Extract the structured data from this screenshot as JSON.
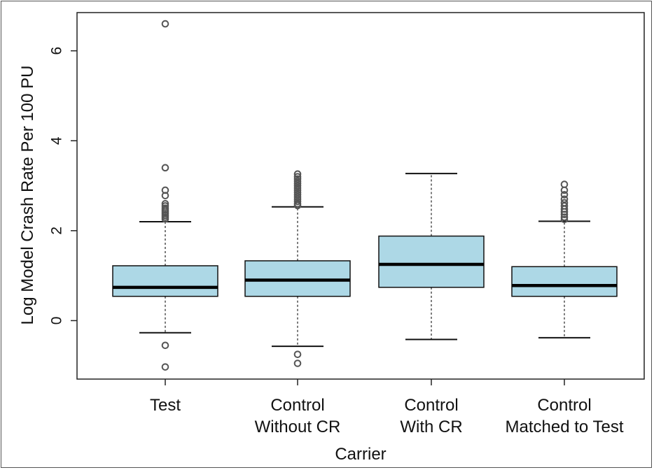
{
  "chart_data": {
    "type": "boxplot",
    "title": "",
    "xlabel": "Carrier",
    "ylabel": "Log Model Crash Rate Per 100 PU",
    "ylim": [
      -1.3,
      6.85
    ],
    "yticks": [
      0,
      2,
      4,
      6
    ],
    "grid": false,
    "legend": "none",
    "box_color": "#add8e6",
    "categories": [
      [
        "Test"
      ],
      [
        "Control",
        "Without CR"
      ],
      [
        "Control",
        "With CR"
      ],
      [
        "Control",
        "Matched to Test"
      ]
    ],
    "boxes": [
      {
        "whisker_low": -0.27,
        "q1": 0.54,
        "median": 0.74,
        "q3": 1.22,
        "whisker_high": 2.2,
        "outliers": [
          -0.55,
          -1.03,
          2.26,
          2.3,
          2.34,
          2.38,
          2.42,
          2.46,
          2.5,
          2.55,
          2.6,
          2.78,
          2.9,
          3.4,
          6.6
        ]
      },
      {
        "whisker_low": -0.57,
        "q1": 0.54,
        "median": 0.9,
        "q3": 1.33,
        "whisker_high": 2.53,
        "outliers": [
          -0.75,
          -0.95,
          2.56,
          2.6,
          2.65,
          2.7,
          2.75,
          2.8,
          2.85,
          2.9,
          2.95,
          3.0,
          3.05,
          3.1,
          3.15,
          3.2,
          3.26
        ]
      },
      {
        "whisker_low": -0.42,
        "q1": 0.74,
        "median": 1.25,
        "q3": 1.88,
        "whisker_high": 3.27,
        "outliers": []
      },
      {
        "whisker_low": -0.38,
        "q1": 0.54,
        "median": 0.78,
        "q3": 1.2,
        "whisker_high": 2.21,
        "outliers": [
          2.25,
          2.3,
          2.36,
          2.42,
          2.48,
          2.55,
          2.62,
          2.7,
          2.8,
          2.9,
          3.03
        ]
      }
    ]
  }
}
